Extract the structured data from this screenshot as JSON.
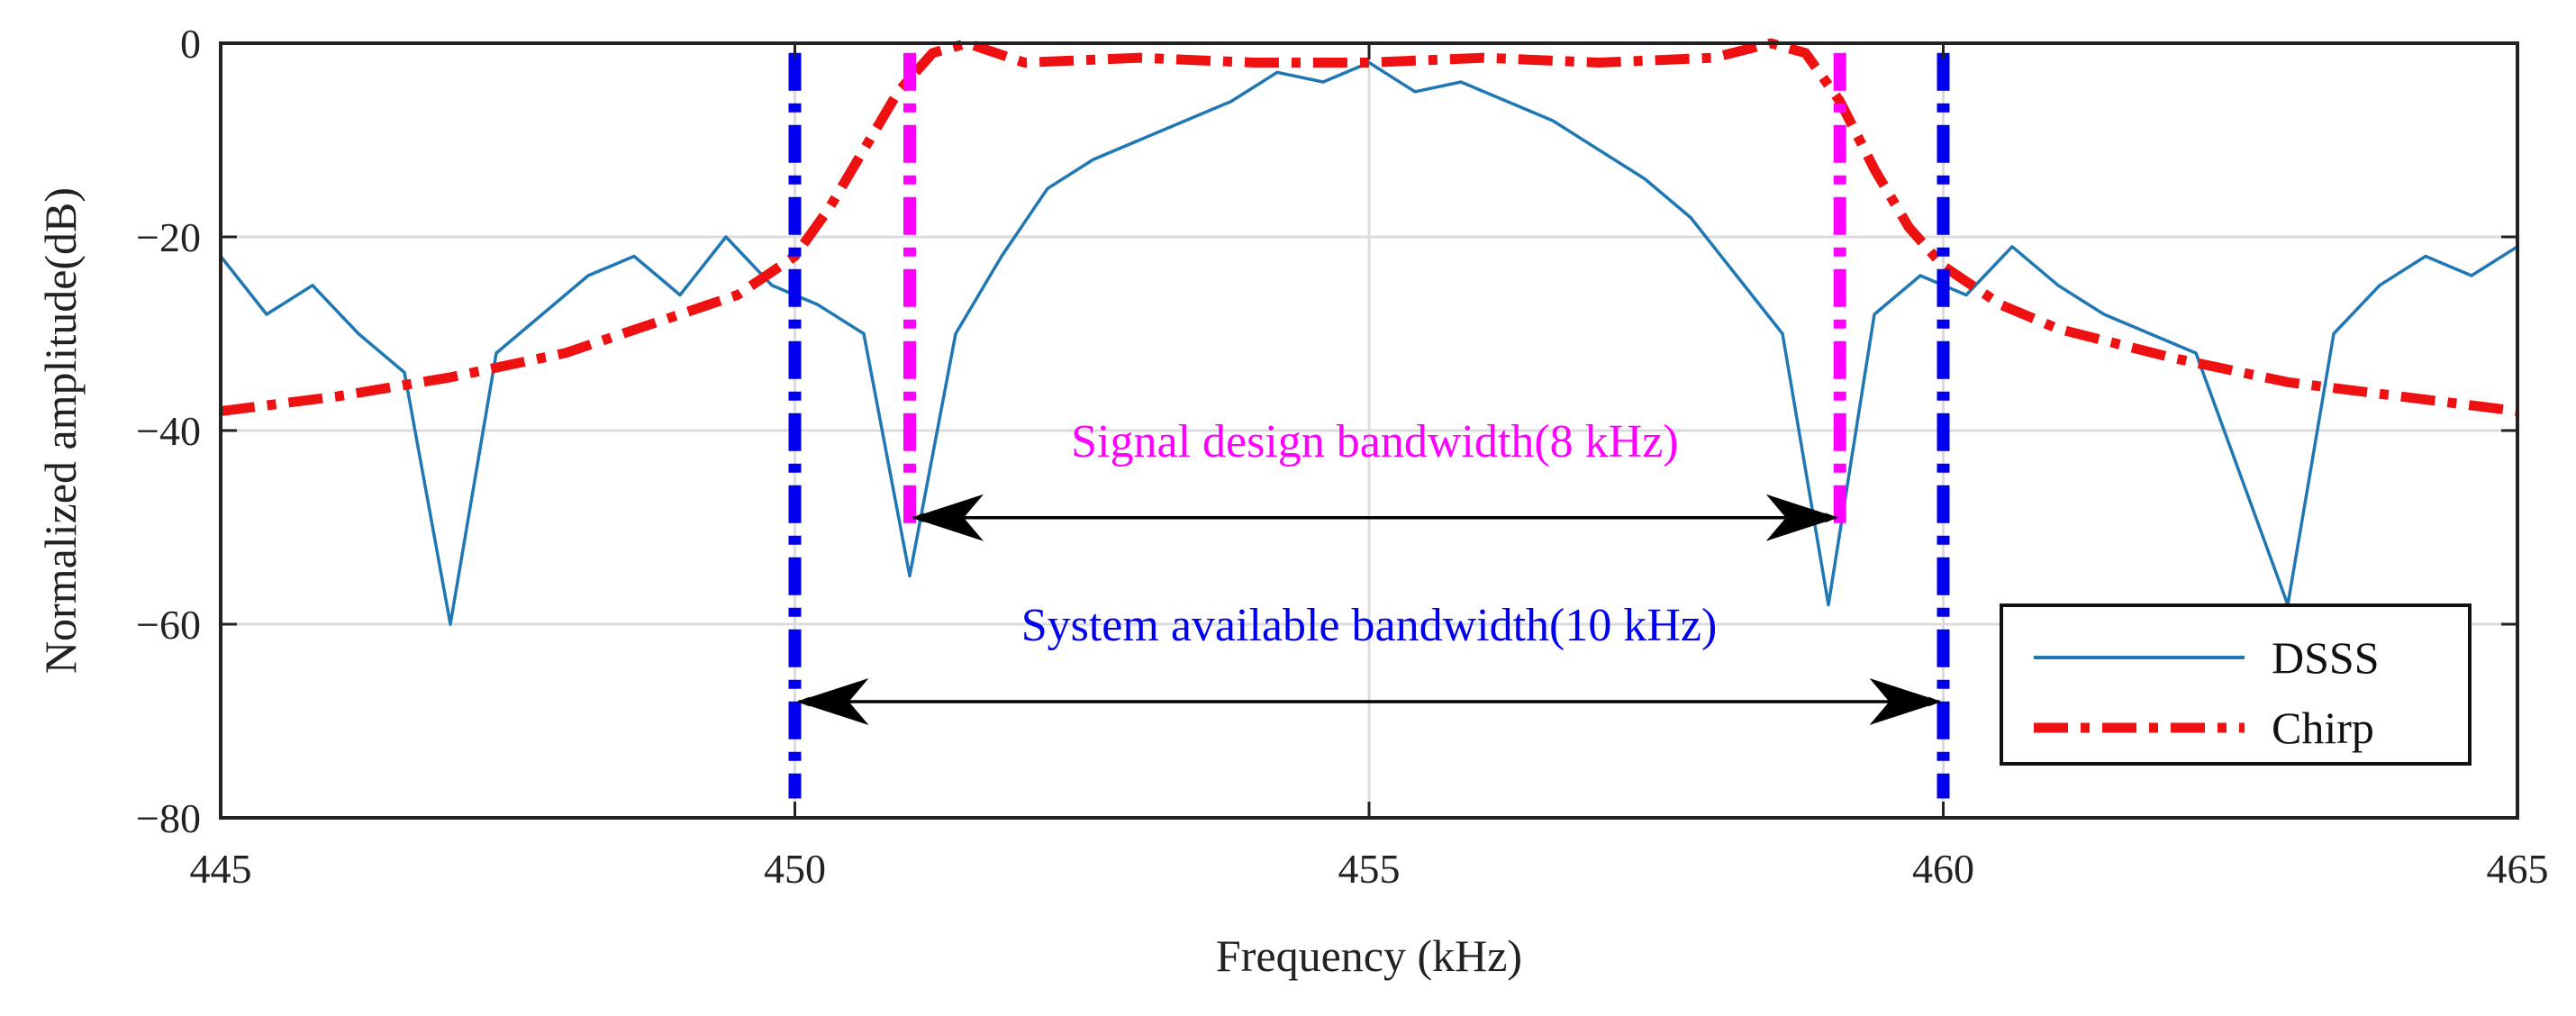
{
  "chart_data": {
    "type": "line",
    "title": "",
    "xlabel": "Frequency (kHz)",
    "ylabel": "Normalized amplitude(dB)",
    "xlim": [
      445,
      465
    ],
    "ylim": [
      -80,
      0
    ],
    "xticks": [
      445,
      450,
      455,
      460,
      465
    ],
    "yticks": [
      0,
      -20,
      -40,
      -60,
      -80
    ],
    "xtick_labels": [
      "445",
      "450",
      "455",
      "460",
      "465"
    ],
    "ytick_labels": [
      "0",
      "−20",
      "−40",
      "−60",
      "−80"
    ],
    "grid": true,
    "legend_position": "bottom-right",
    "series": [
      {
        "name": "DSSS",
        "style": "solid",
        "color": "#1f77b4",
        "x": [
          445.0,
          445.4,
          445.8,
          446.2,
          446.6,
          447.0,
          447.4,
          447.8,
          448.2,
          448.6,
          449.0,
          449.4,
          449.8,
          450.2,
          450.6,
          451.0,
          451.4,
          451.8,
          452.2,
          452.6,
          453.0,
          453.4,
          453.8,
          454.2,
          454.6,
          455.0,
          455.4,
          455.8,
          456.2,
          456.6,
          457.0,
          457.4,
          457.8,
          458.2,
          458.6,
          459.0,
          459.4,
          459.8,
          460.2,
          460.6,
          461.0,
          461.4,
          461.8,
          462.2,
          462.6,
          463.0,
          463.4,
          463.8,
          464.2,
          464.6,
          465.0
        ],
        "values": [
          -22,
          -28,
          -25,
          -30,
          -34,
          -60,
          -32,
          -28,
          -24,
          -22,
          -26,
          -20,
          -25,
          -27,
          -30,
          -55,
          -30,
          -22,
          -15,
          -12,
          -10,
          -8,
          -6,
          -3,
          -4,
          -2,
          -5,
          -4,
          -6,
          -8,
          -11,
          -14,
          -18,
          -24,
          -30,
          -58,
          -28,
          -24,
          -26,
          -21,
          -25,
          -28,
          -30,
          -32,
          -45,
          -58,
          -30,
          -25,
          -22,
          -24,
          -21
        ]
      },
      {
        "name": "Chirp",
        "style": "dash-dot",
        "color": "#ee1111",
        "x": [
          445.0,
          446.0,
          447.0,
          448.0,
          449.0,
          449.5,
          450.0,
          450.3,
          450.6,
          450.9,
          451.2,
          451.5,
          452.0,
          453.0,
          454.0,
          455.0,
          456.0,
          457.0,
          458.0,
          458.5,
          458.8,
          459.1,
          459.4,
          459.7,
          460.0,
          460.5,
          461.0,
          462.0,
          463.0,
          464.0,
          465.0
        ],
        "values": [
          -38,
          -36.5,
          -34.5,
          -32,
          -28,
          -26,
          -22,
          -17,
          -11,
          -5,
          -1,
          0,
          -2,
          -1.5,
          -2,
          -2,
          -1.5,
          -2,
          -1.5,
          0,
          -1,
          -6,
          -13,
          -19,
          -23,
          -27,
          -29.5,
          -32.5,
          -35,
          -36.5,
          -38
        ]
      }
    ],
    "vlines": [
      {
        "x": 450.0,
        "color": "#0000ee",
        "style": "dash-dot",
        "y_top": -1,
        "y_bottom": -78
      },
      {
        "x": 460.0,
        "color": "#0000ee",
        "style": "dash-dot",
        "y_top": -1,
        "y_bottom": -78
      },
      {
        "x": 451.0,
        "color": "#ff00ff",
        "style": "dash-dot",
        "y_top": -1,
        "y_bottom": -50
      },
      {
        "x": 459.1,
        "color": "#ff00ff",
        "style": "dash-dot",
        "y_top": -1,
        "y_bottom": -50
      }
    ],
    "annotations": [
      {
        "text": "Signal design bandwidth(8 kHz)",
        "color": "#ff00ff",
        "x_from": 451.0,
        "x_to": 459.1,
        "y_arrow": -49,
        "y_text": -41
      },
      {
        "text": "System available bandwidth(10 kHz)",
        "color": "#0000ee",
        "x_from": 450.0,
        "x_to": 460.0,
        "y_arrow": -68,
        "y_text": -60
      }
    ]
  }
}
